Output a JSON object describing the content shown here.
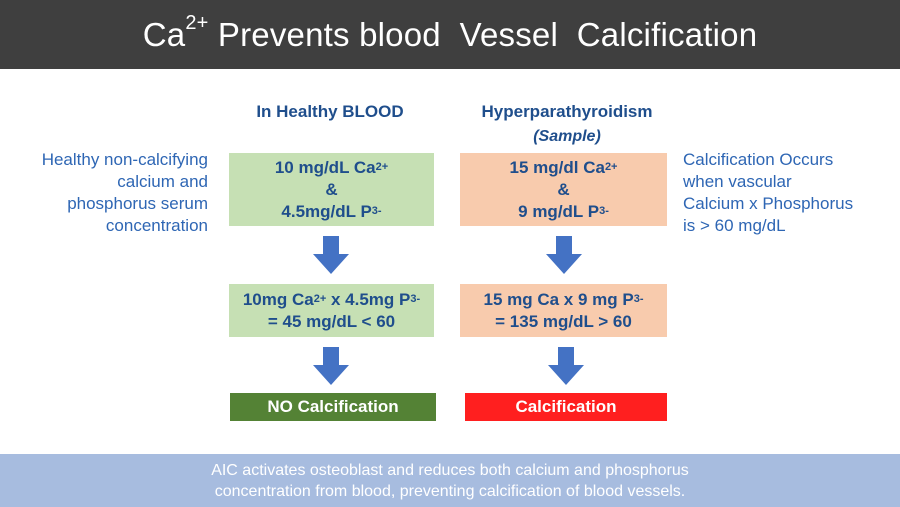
{
  "title": {
    "main": "Ca",
    "sup": "2+",
    "rest": " Prevents blood  Vessel  Calcification"
  },
  "columns": {
    "healthy": {
      "heading": "In Healthy BLOOD",
      "box1": {
        "line1": "10 mg/dL Ca",
        "line1_sup": "2+",
        "line2": "&",
        "line3": "4.5mg/dL P",
        "line3_sup": "3-"
      },
      "box2": {
        "line1a": "10mg Ca",
        "line1a_sup": "2+",
        "line1b": " x 4.5mg P",
        "line1b_sup": "3-",
        "line2": "= 45 mg/dL < 60"
      },
      "result": "NO Calcification"
    },
    "hyper": {
      "heading": "Hyperparathyroidism",
      "subheading": "(Sample)",
      "box1": {
        "line1": "15 mg/dl Ca",
        "line1_sup": "2+",
        "line2": "&",
        "line3": "9 mg/dL P",
        "line3_sup": "3-"
      },
      "box2": {
        "line1a": "15 mg Ca x 9 mg P",
        "line1a_sup": "3-",
        "line2": "= 135 mg/dL > 60"
      },
      "result": "Calcification"
    }
  },
  "side_notes": {
    "left": [
      "Healthy non-calcifying",
      "calcium and",
      "phosphorus serum",
      "concentration"
    ],
    "right": [
      "Calcification Occurs",
      "when vascular",
      "Calcium x Phosphorus",
      "is > 60 mg/dL"
    ]
  },
  "footer": [
    "AIC activates osteoblast and reduces both calcium and phosphorus",
    "concentration from blood, preventing calcification of blood vessels."
  ],
  "colors": {
    "header_bg": "#3f3f3f",
    "green_box": "#c6e0b4",
    "peach_box": "#f8cbad",
    "no_calc": "#548235",
    "calc": "#ff1f1f",
    "arrow": "#4472c4",
    "footer_bg": "#a7bcdf",
    "text_blue": "#1f4e8c"
  }
}
